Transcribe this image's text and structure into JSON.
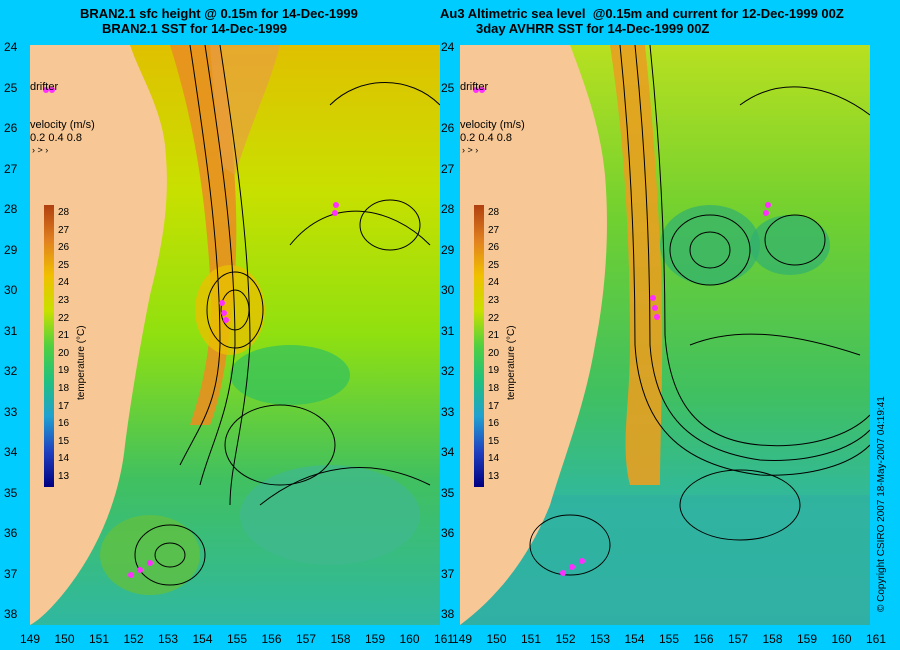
{
  "left_panel": {
    "title_line1": "BRAN2.1 sfc height @ 0.15m for 14-Dec-1999",
    "title_line2": "BRAN2.1 SST for 14-Dec-1999"
  },
  "right_panel": {
    "title_line1": "Au3 Altimetric sea level  @0.15m and current for 12-Dec-1999 00Z",
    "title_line2": "3day AVHRR SST for 14-Dec-1999 00Z"
  },
  "legend": {
    "drifter_label": "drifter",
    "velocity_label": "velocity (m/s)",
    "velocity_values": "0.2 0.4 0.8",
    "colorbar_title": "temperature (°C)",
    "colorbar_ticks": [
      "28",
      "27",
      "26",
      "25",
      "24",
      "23",
      "22",
      "21",
      "20",
      "19",
      "18",
      "17",
      "16",
      "15",
      "14",
      "13"
    ]
  },
  "axes": {
    "lat_labels": [
      "24",
      "25",
      "26",
      "27",
      "28",
      "29",
      "30",
      "31",
      "32",
      "33",
      "34",
      "35",
      "36",
      "37",
      "38"
    ],
    "lon_labels": [
      "149",
      "150",
      "151",
      "152",
      "153",
      "154",
      "155",
      "156",
      "157",
      "158",
      "159",
      "160",
      "161"
    ]
  },
  "copyright": "© Copyright CSIRO 2007    18-May-2007 04:19:41",
  "colors": {
    "background": "#00ccff",
    "land": "#f7c896",
    "ocean_warm": "#e8a020",
    "ocean_mid": "#c8e800",
    "ocean_cool": "#30c070",
    "drifter": "#ff30ff"
  }
}
